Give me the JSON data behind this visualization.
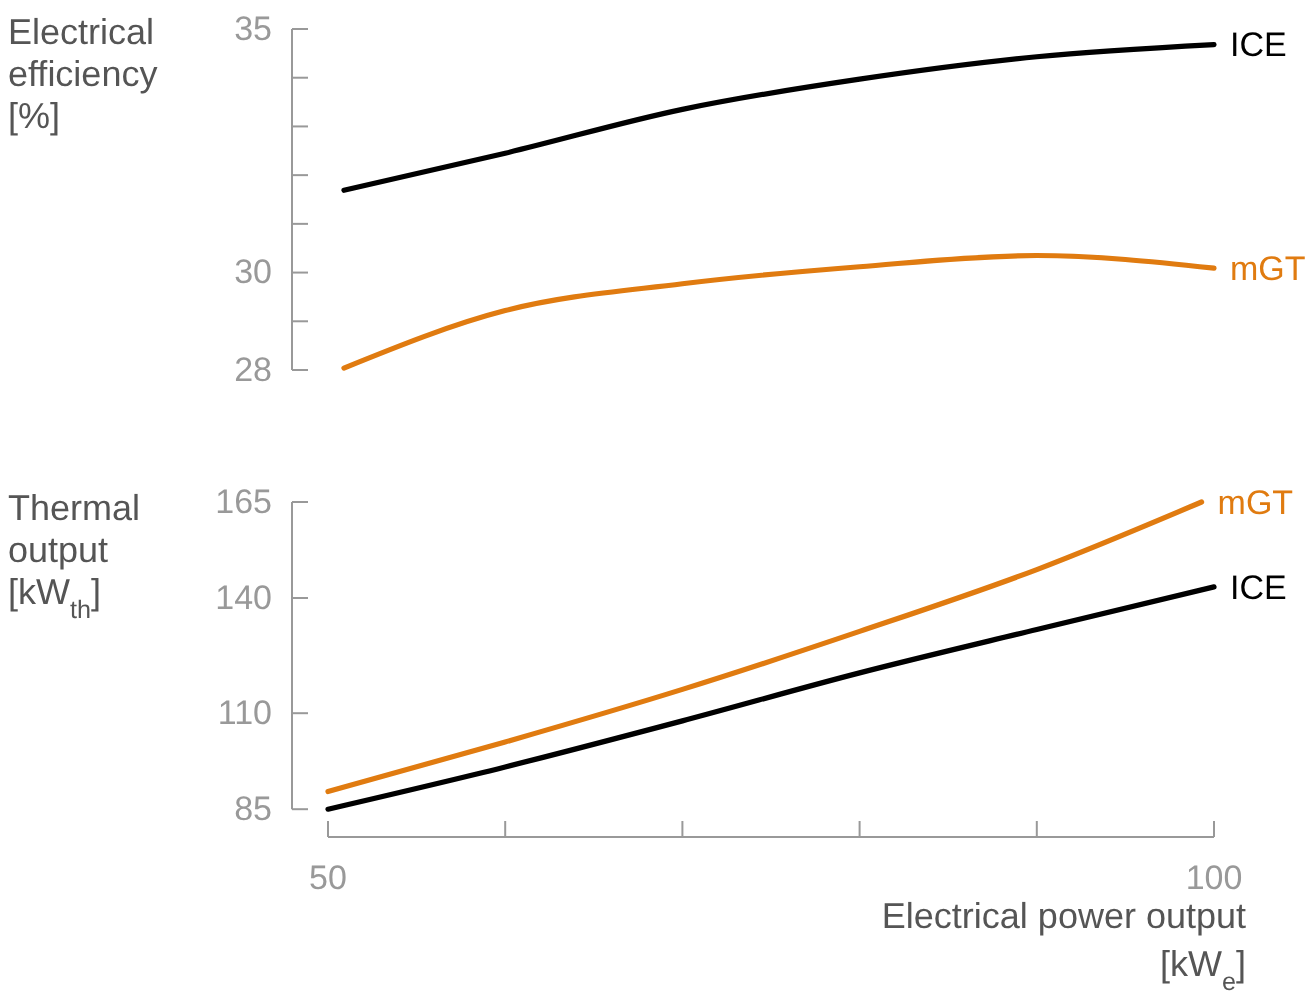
{
  "chart_data": [
    {
      "type": "line",
      "ylabel": "Electrical\nefficiency\n[%]",
      "xlim": [
        50,
        100
      ],
      "ylim": [
        28,
        35
      ],
      "yticks": [
        28,
        {
          "value": 29,
          "label": null
        },
        30,
        {
          "value": 31,
          "label": null
        },
        {
          "value": 32,
          "label": null
        },
        {
          "value": 33,
          "label": null
        },
        {
          "value": 34,
          "label": null
        },
        35
      ],
      "tick_labels": "y",
      "grid": false,
      "series": [
        {
          "name": "ICE",
          "color": "#000000",
          "x": [
            50.9,
            60,
            70,
            80,
            90,
            100
          ],
          "values": [
            31.69,
            32.45,
            33.35,
            33.97,
            34.43,
            34.68
          ]
        },
        {
          "name": "mGT",
          "color": "#e07b10",
          "x": [
            50.9,
            60,
            70,
            80,
            90,
            100
          ],
          "values": [
            28.04,
            29.22,
            29.77,
            30.12,
            30.35,
            30.09
          ]
        }
      ]
    },
    {
      "type": "line",
      "ylabel": "Thermal\noutput\n[kW$_{th}$]",
      "xlabel": "Electrical power output\n[kW$_{e}$]",
      "xlim": [
        50,
        100
      ],
      "ylim": [
        85,
        165
      ],
      "yticks": [
        85,
        110,
        140,
        165
      ],
      "xticks": [
        50,
        {
          "value": 60,
          "label": null
        },
        {
          "value": 70,
          "label": null
        },
        {
          "value": 80,
          "label": null
        },
        {
          "value": 90,
          "label": null
        },
        100
      ],
      "grid": false,
      "series": [
        {
          "name": "mGT",
          "color": "#e07b10",
          "x": [
            50,
            60,
            70,
            80,
            90,
            99.3
          ],
          "values": [
            89.6,
            102.5,
            116.2,
            131.3,
            147.4,
            165
          ]
        },
        {
          "name": "ICE",
          "color": "#000000",
          "x": [
            50,
            60,
            70,
            80,
            90,
            100
          ],
          "values": [
            85,
            96,
            108,
            120.5,
            131.8,
            142.9
          ]
        }
      ]
    }
  ]
}
